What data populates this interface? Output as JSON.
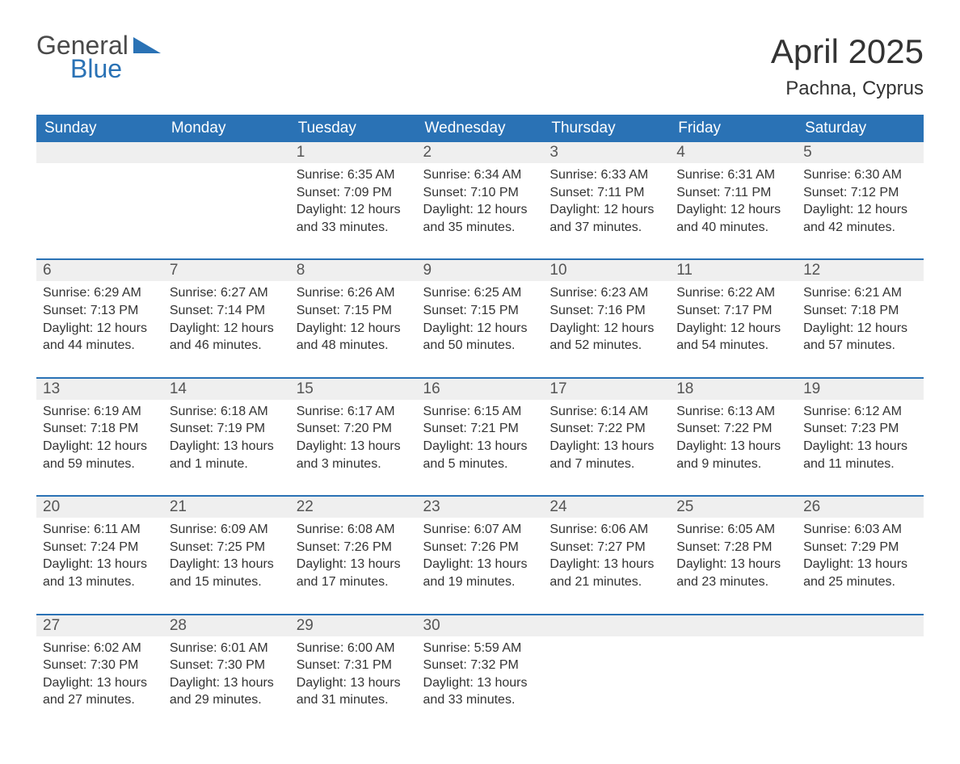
{
  "logo": {
    "general": "General",
    "blue": "Blue",
    "tri_color": "#2a72b5"
  },
  "title": "April 2025",
  "location": "Pachna, Cyprus",
  "colors": {
    "header_bg": "#2a72b5",
    "header_fg": "#ffffff",
    "daynum_bg": "#efefef",
    "row_border": "#2a72b5",
    "page_bg": "#ffffff",
    "text": "#333333"
  },
  "fonts": {
    "title_pt": 42,
    "location_pt": 24,
    "weekday_pt": 19,
    "daynum_pt": 19,
    "body_pt": 16
  },
  "weekdays": [
    "Sunday",
    "Monday",
    "Tuesday",
    "Wednesday",
    "Thursday",
    "Friday",
    "Saturday"
  ],
  "weeks": [
    [
      null,
      null,
      {
        "n": "1",
        "sr": "6:35 AM",
        "ss": "7:09 PM",
        "dl": "12 hours and 33 minutes."
      },
      {
        "n": "2",
        "sr": "6:34 AM",
        "ss": "7:10 PM",
        "dl": "12 hours and 35 minutes."
      },
      {
        "n": "3",
        "sr": "6:33 AM",
        "ss": "7:11 PM",
        "dl": "12 hours and 37 minutes."
      },
      {
        "n": "4",
        "sr": "6:31 AM",
        "ss": "7:11 PM",
        "dl": "12 hours and 40 minutes."
      },
      {
        "n": "5",
        "sr": "6:30 AM",
        "ss": "7:12 PM",
        "dl": "12 hours and 42 minutes."
      }
    ],
    [
      {
        "n": "6",
        "sr": "6:29 AM",
        "ss": "7:13 PM",
        "dl": "12 hours and 44 minutes."
      },
      {
        "n": "7",
        "sr": "6:27 AM",
        "ss": "7:14 PM",
        "dl": "12 hours and 46 minutes."
      },
      {
        "n": "8",
        "sr": "6:26 AM",
        "ss": "7:15 PM",
        "dl": "12 hours and 48 minutes."
      },
      {
        "n": "9",
        "sr": "6:25 AM",
        "ss": "7:15 PM",
        "dl": "12 hours and 50 minutes."
      },
      {
        "n": "10",
        "sr": "6:23 AM",
        "ss": "7:16 PM",
        "dl": "12 hours and 52 minutes."
      },
      {
        "n": "11",
        "sr": "6:22 AM",
        "ss": "7:17 PM",
        "dl": "12 hours and 54 minutes."
      },
      {
        "n": "12",
        "sr": "6:21 AM",
        "ss": "7:18 PM",
        "dl": "12 hours and 57 minutes."
      }
    ],
    [
      {
        "n": "13",
        "sr": "6:19 AM",
        "ss": "7:18 PM",
        "dl": "12 hours and 59 minutes."
      },
      {
        "n": "14",
        "sr": "6:18 AM",
        "ss": "7:19 PM",
        "dl": "13 hours and 1 minute."
      },
      {
        "n": "15",
        "sr": "6:17 AM",
        "ss": "7:20 PM",
        "dl": "13 hours and 3 minutes."
      },
      {
        "n": "16",
        "sr": "6:15 AM",
        "ss": "7:21 PM",
        "dl": "13 hours and 5 minutes."
      },
      {
        "n": "17",
        "sr": "6:14 AM",
        "ss": "7:22 PM",
        "dl": "13 hours and 7 minutes."
      },
      {
        "n": "18",
        "sr": "6:13 AM",
        "ss": "7:22 PM",
        "dl": "13 hours and 9 minutes."
      },
      {
        "n": "19",
        "sr": "6:12 AM",
        "ss": "7:23 PM",
        "dl": "13 hours and 11 minutes."
      }
    ],
    [
      {
        "n": "20",
        "sr": "6:11 AM",
        "ss": "7:24 PM",
        "dl": "13 hours and 13 minutes."
      },
      {
        "n": "21",
        "sr": "6:09 AM",
        "ss": "7:25 PM",
        "dl": "13 hours and 15 minutes."
      },
      {
        "n": "22",
        "sr": "6:08 AM",
        "ss": "7:26 PM",
        "dl": "13 hours and 17 minutes."
      },
      {
        "n": "23",
        "sr": "6:07 AM",
        "ss": "7:26 PM",
        "dl": "13 hours and 19 minutes."
      },
      {
        "n": "24",
        "sr": "6:06 AM",
        "ss": "7:27 PM",
        "dl": "13 hours and 21 minutes."
      },
      {
        "n": "25",
        "sr": "6:05 AM",
        "ss": "7:28 PM",
        "dl": "13 hours and 23 minutes."
      },
      {
        "n": "26",
        "sr": "6:03 AM",
        "ss": "7:29 PM",
        "dl": "13 hours and 25 minutes."
      }
    ],
    [
      {
        "n": "27",
        "sr": "6:02 AM",
        "ss": "7:30 PM",
        "dl": "13 hours and 27 minutes."
      },
      {
        "n": "28",
        "sr": "6:01 AM",
        "ss": "7:30 PM",
        "dl": "13 hours and 29 minutes."
      },
      {
        "n": "29",
        "sr": "6:00 AM",
        "ss": "7:31 PM",
        "dl": "13 hours and 31 minutes."
      },
      {
        "n": "30",
        "sr": "5:59 AM",
        "ss": "7:32 PM",
        "dl": "13 hours and 33 minutes."
      },
      null,
      null,
      null
    ]
  ],
  "labels": {
    "sunrise": "Sunrise: ",
    "sunset": "Sunset: ",
    "daylight": "Daylight: "
  }
}
